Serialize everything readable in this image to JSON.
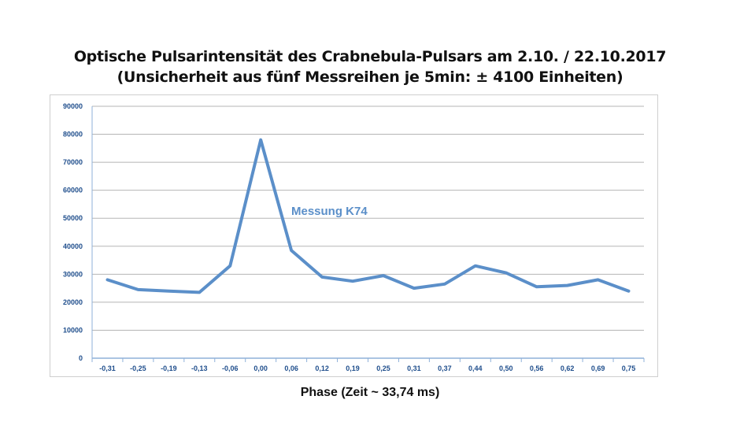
{
  "chart_data": {
    "type": "line",
    "title": "Optische Pulsarintensität des Crabnebula-Pulsars am 2.10. / 22.10.2017",
    "subtitle": "(Unsicherheit aus fünf Messreihen je 5min: ± 4100 Einheiten)",
    "xlabel": "Phase (Zeit ~ 33,74 ms)",
    "ylabel": "",
    "categories": [
      "-0,31",
      "-0,25",
      "-0,19",
      "-0,13",
      "-0,06",
      "0,00",
      "0,06",
      "0,12",
      "0,19",
      "0,25",
      "0,31",
      "0,37",
      "0,44",
      "0,50",
      "0,56",
      "0,62",
      "0,69",
      "0,75"
    ],
    "series": [
      {
        "name": "Messung K74",
        "values": [
          28000,
          24500,
          24000,
          23500,
          33000,
          78000,
          38500,
          29000,
          27500,
          29500,
          25000,
          26500,
          33000,
          30500,
          25500,
          26000,
          28000,
          24000
        ]
      }
    ],
    "yticks": [
      "0",
      "10000",
      "20000",
      "30000",
      "40000",
      "50000",
      "60000",
      "70000",
      "80000",
      "90000"
    ],
    "ylim": [
      0,
      90000
    ],
    "grid": true,
    "line_color": "#5b8fc9",
    "axis_label_color": "#1f4e8c",
    "annotation": "Messung K74",
    "annotation_color": "#5b8fc9"
  }
}
